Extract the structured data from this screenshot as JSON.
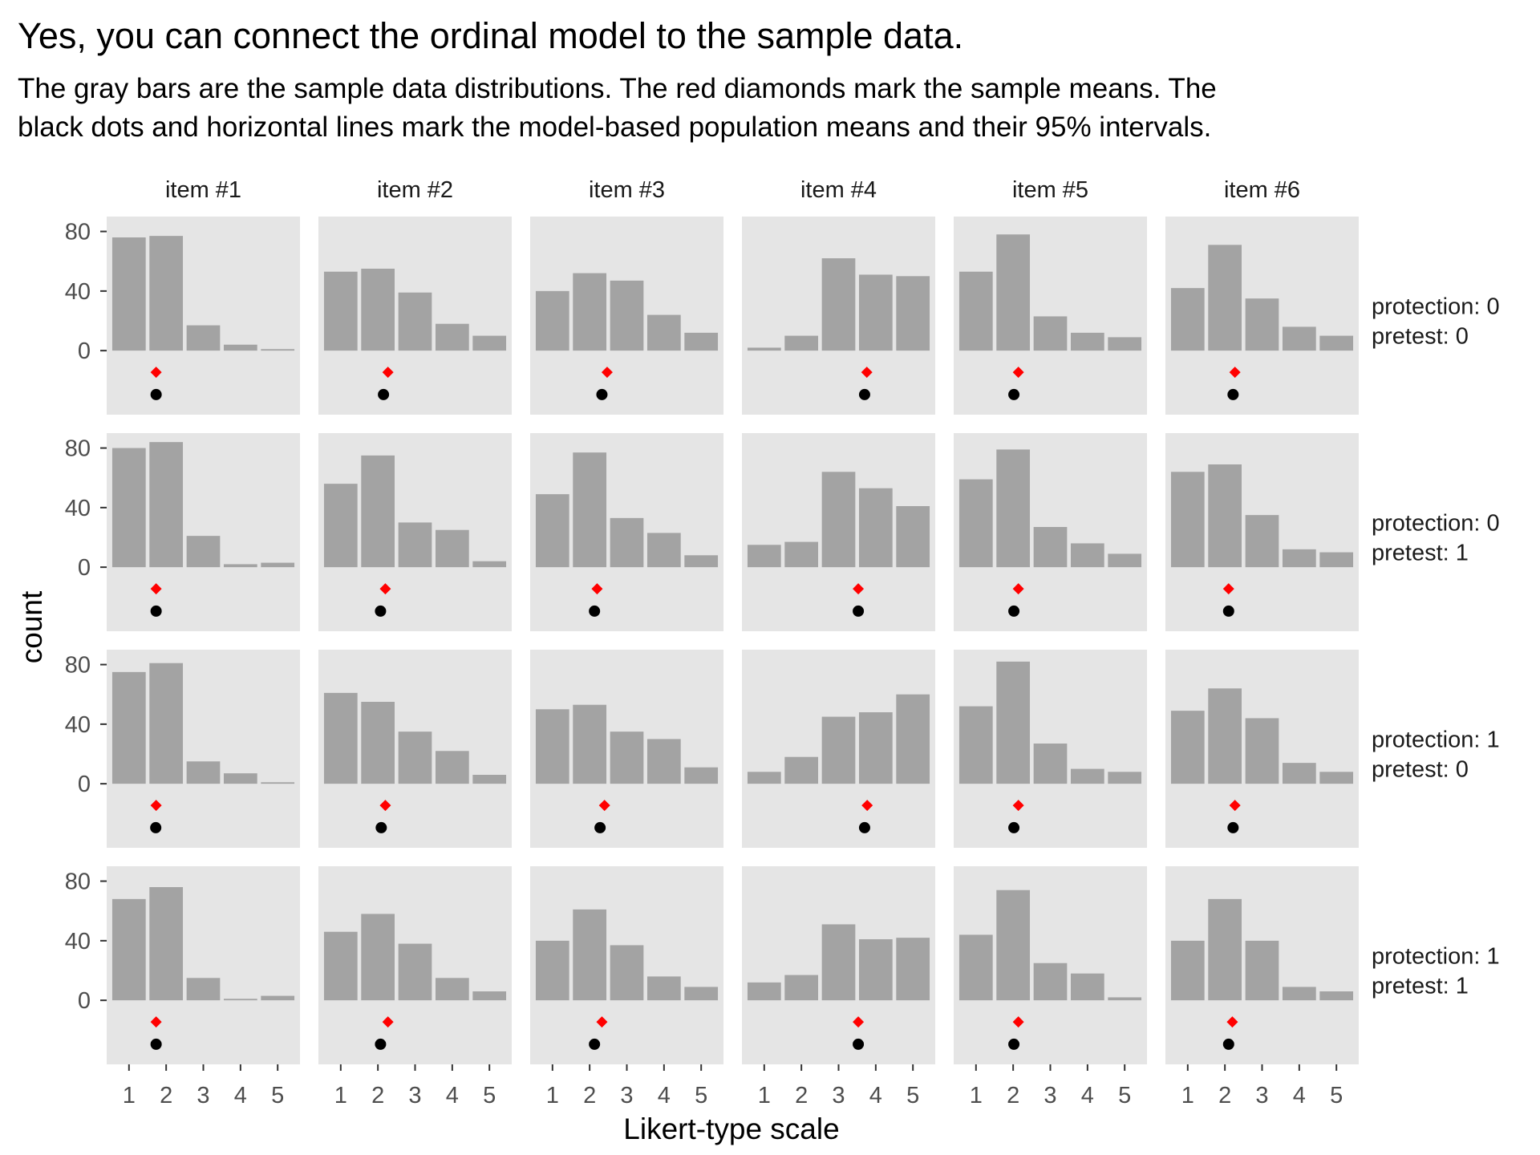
{
  "chart_data": {
    "type": "bar",
    "title": "Yes, you can connect the ordinal model to the sample data.",
    "subtitle_lines": [
      "The gray bars are the sample data distributions. The red diamonds mark the sample means. The",
      "black dots and horizontal lines mark the model-based population means and their 95% intervals."
    ],
    "xlabel": "Likert-type scale",
    "ylabel": "count",
    "x_categories": [
      "1",
      "2",
      "3",
      "4",
      "5"
    ],
    "y_ticks": [
      0,
      40,
      80
    ],
    "ylim": [
      -43,
      90
    ],
    "xlim": [
      0.4,
      5.6
    ],
    "grid": false,
    "panel_background": "#e5e5e5",
    "bar_color": "#a3a3a3",
    "sample_mean_color": "#ff0000",
    "model_mean_color": "#000000",
    "sample_mean_y": -14.5,
    "model_mean_y": -29.5,
    "columns": [
      "item #1",
      "item #2",
      "item #3",
      "item #4",
      "item #5",
      "item #6"
    ],
    "rows": [
      {
        "protection_label": "protection: 0",
        "pretest_label": "pretest: 0",
        "panels": [
          {
            "counts": [
              76,
              77,
              17,
              4,
              1
            ],
            "sample_mean": 1.73,
            "model_mean": 1.73,
            "ci": [
              1.67,
              1.8
            ]
          },
          {
            "counts": [
              53,
              55,
              39,
              18,
              10
            ],
            "sample_mean": 2.27,
            "model_mean": 2.15,
            "ci": [
              2.05,
              2.25
            ]
          },
          {
            "counts": [
              40,
              52,
              47,
              24,
              12
            ],
            "sample_mean": 2.47,
            "model_mean": 2.33,
            "ci": [
              2.22,
              2.44
            ]
          },
          {
            "counts": [
              2,
              10,
              62,
              51,
              50
            ],
            "sample_mean": 3.76,
            "model_mean": 3.7,
            "ci": [
              3.61,
              3.79
            ]
          },
          {
            "counts": [
              53,
              78,
              23,
              12,
              9
            ],
            "sample_mean": 2.14,
            "model_mean": 2.02,
            "ci": [
              1.95,
              2.09
            ]
          },
          {
            "counts": [
              42,
              71,
              35,
              16,
              10
            ],
            "sample_mean": 2.27,
            "model_mean": 2.22,
            "ci": [
              2.14,
              2.3
            ]
          }
        ]
      },
      {
        "protection_label": "protection: 0",
        "pretest_label": "pretest: 1",
        "panels": [
          {
            "counts": [
              80,
              84,
              21,
              2,
              3
            ],
            "sample_mean": 1.73,
            "model_mean": 1.73,
            "ci": [
              1.68,
              1.78
            ]
          },
          {
            "counts": [
              56,
              75,
              30,
              25,
              4
            ],
            "sample_mean": 2.2,
            "model_mean": 2.07,
            "ci": [
              2.01,
              2.13
            ]
          },
          {
            "counts": [
              49,
              77,
              33,
              23,
              8
            ],
            "sample_mean": 2.2,
            "model_mean": 2.13,
            "ci": [
              2.07,
              2.19
            ]
          },
          {
            "counts": [
              15,
              17,
              64,
              53,
              41
            ],
            "sample_mean": 3.53,
            "model_mean": 3.53,
            "ci": [
              3.47,
              3.59
            ]
          },
          {
            "counts": [
              59,
              79,
              27,
              16,
              9
            ],
            "sample_mean": 2.14,
            "model_mean": 2.02,
            "ci": [
              1.96,
              2.08
            ]
          },
          {
            "counts": [
              64,
              69,
              35,
              12,
              10
            ],
            "sample_mean": 2.1,
            "model_mean": 2.1,
            "ci": [
              2.04,
              2.16
            ]
          }
        ]
      },
      {
        "protection_label": "protection: 1",
        "pretest_label": "pretest: 0",
        "panels": [
          {
            "counts": [
              75,
              81,
              15,
              7,
              1
            ],
            "sample_mean": 1.73,
            "model_mean": 1.72,
            "ci": [
              1.66,
              1.78
            ]
          },
          {
            "counts": [
              61,
              55,
              35,
              22,
              6
            ],
            "sample_mean": 2.2,
            "model_mean": 2.09,
            "ci": [
              2.0,
              2.18
            ]
          },
          {
            "counts": [
              50,
              53,
              35,
              30,
              11
            ],
            "sample_mean": 2.4,
            "model_mean": 2.28,
            "ci": [
              2.18,
              2.38
            ]
          },
          {
            "counts": [
              8,
              18,
              45,
              48,
              60
            ],
            "sample_mean": 3.77,
            "model_mean": 3.7,
            "ci": [
              3.63,
              3.77
            ]
          },
          {
            "counts": [
              52,
              82,
              27,
              10,
              8
            ],
            "sample_mean": 2.14,
            "model_mean": 2.02,
            "ci": [
              1.96,
              2.08
            ]
          },
          {
            "counts": [
              49,
              64,
              44,
              14,
              8
            ],
            "sample_mean": 2.27,
            "model_mean": 2.22,
            "ci": [
              2.15,
              2.29
            ]
          }
        ]
      },
      {
        "protection_label": "protection: 1",
        "pretest_label": "pretest: 1",
        "panels": [
          {
            "counts": [
              68,
              76,
              15,
              1,
              3
            ],
            "sample_mean": 1.73,
            "model_mean": 1.73,
            "ci": [
              1.68,
              1.78
            ]
          },
          {
            "counts": [
              46,
              58,
              38,
              15,
              6
            ],
            "sample_mean": 2.27,
            "model_mean": 2.07,
            "ci": [
              2.01,
              2.13
            ]
          },
          {
            "counts": [
              40,
              61,
              37,
              16,
              9
            ],
            "sample_mean": 2.33,
            "model_mean": 2.13,
            "ci": [
              2.07,
              2.19
            ]
          },
          {
            "counts": [
              12,
              17,
              51,
              41,
              42
            ],
            "sample_mean": 3.53,
            "model_mean": 3.53,
            "ci": [
              3.47,
              3.59
            ]
          },
          {
            "counts": [
              44,
              74,
              25,
              18,
              2
            ],
            "sample_mean": 2.14,
            "model_mean": 2.02,
            "ci": [
              1.96,
              2.08
            ]
          },
          {
            "counts": [
              40,
              68,
              40,
              9,
              6
            ],
            "sample_mean": 2.2,
            "model_mean": 2.1,
            "ci": [
              2.04,
              2.16
            ]
          }
        ]
      }
    ]
  }
}
